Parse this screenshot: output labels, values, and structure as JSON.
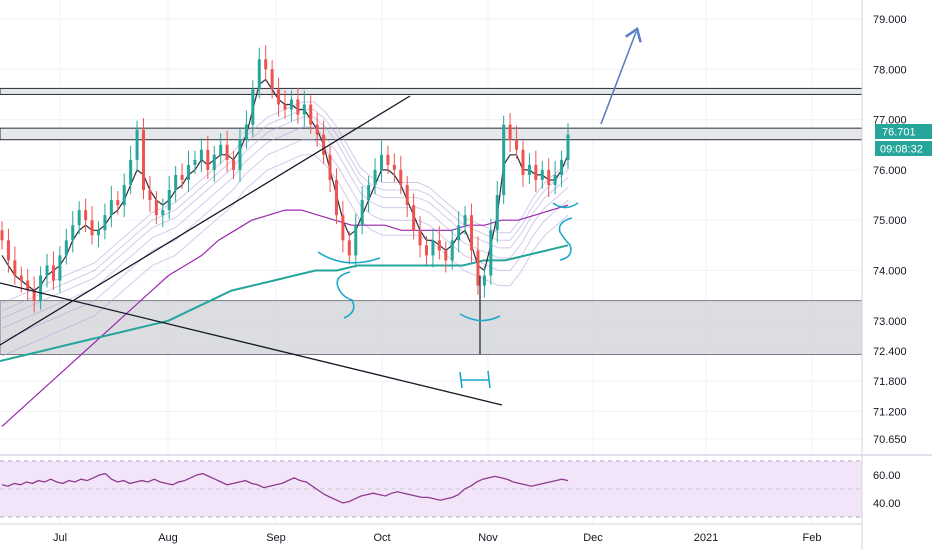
{
  "chart_data": [
    {
      "type": "candlestick",
      "instrument_note": "",
      "y_axis": {
        "ticks": [
          "79.000",
          "78.000",
          "77.000",
          "76.000",
          "75.000",
          "74.000",
          "73.000",
          "72.400",
          "71.800",
          "71.200",
          "70.650"
        ],
        "range": [
          70.3,
          79.35
        ]
      },
      "x_axis": {
        "ticks": [
          "Jul",
          "Aug",
          "Sep",
          "Oct",
          "Nov",
          "Dec",
          "2021",
          "Feb"
        ]
      },
      "price_label": {
        "value": "76.701",
        "color": "#26a69a"
      },
      "countdown_label": {
        "value": "09:08:32",
        "color": "#26a69a"
      },
      "series": [
        {
          "name": "",
          "kind": "price",
          "color": "#ef5350",
          "values": [
            74.6,
            74.2,
            73.9,
            73.8,
            73.6,
            73.4,
            73.9,
            74.1,
            73.8,
            74.3,
            74.6,
            74.9,
            75.2,
            75.0,
            74.7,
            74.8,
            75.1,
            75.4,
            75.3,
            75.7,
            76.2,
            76.8,
            75.6,
            75.4,
            75.1,
            75.2,
            75.6,
            75.9,
            75.8,
            76.1,
            76.2,
            76.4,
            76.0,
            76.3,
            76.5,
            76.2,
            76.0,
            76.6,
            76.9,
            77.6,
            78.2,
            78.0,
            77.6,
            77.3,
            77.2,
            77.4,
            77.1,
            77.3,
            76.9,
            76.7,
            76.3,
            75.8,
            75.1,
            74.6,
            74.3,
            74.9,
            75.4,
            75.7,
            76.0,
            76.3,
            76.1,
            76.0,
            75.7,
            75.3,
            74.8,
            74.5,
            74.3,
            74.6,
            74.4,
            74.2,
            74.6,
            74.9,
            75.1,
            74.4,
            73.7,
            73.9,
            74.8,
            75.5,
            76.9,
            76.6,
            76.4,
            75.9,
            76.1,
            75.8,
            76.0,
            75.7,
            75.9,
            76.2,
            76.7
          ]
        },
        {
          "name": "",
          "kind": "ma",
          "color": "#2a2e39",
          "values": [
            74.3,
            74.1,
            73.9,
            73.8,
            73.7,
            73.6,
            73.7,
            73.9,
            74.0,
            74.1,
            74.3,
            74.6,
            74.8,
            74.9,
            74.8,
            74.8,
            74.9,
            75.1,
            75.2,
            75.4,
            75.7,
            76.0,
            75.9,
            75.6,
            75.4,
            75.3,
            75.4,
            75.6,
            75.7,
            75.9,
            76.0,
            76.2,
            76.1,
            76.2,
            76.3,
            76.3,
            76.2,
            76.4,
            76.7,
            77.2,
            77.7,
            77.8,
            77.6,
            77.4,
            77.3,
            77.3,
            77.2,
            77.2,
            77.0,
            76.8,
            76.5,
            76.0,
            75.5,
            75.0,
            74.7,
            74.8,
            75.1,
            75.4,
            75.7,
            76.0,
            76.0,
            75.9,
            75.7,
            75.4,
            75.1,
            74.8,
            74.6,
            74.6,
            74.5,
            74.4,
            74.5,
            74.7,
            74.8,
            74.5,
            74.1,
            74.0,
            74.5,
            75.1,
            76.1,
            76.3,
            76.3,
            76.0,
            76.0,
            75.9,
            75.9,
            75.8,
            75.8,
            76.0,
            76.3
          ]
        },
        {
          "name": "",
          "kind": "ema-ribbon",
          "color": "#b39ddb",
          "values": [
            73.2,
            73.3,
            73.4,
            73.5,
            73.6,
            73.7,
            73.8,
            73.9,
            74.0,
            74.2,
            74.4,
            74.6,
            74.8,
            75.0,
            75.1,
            75.2,
            75.4,
            75.6,
            75.8,
            76.0,
            76.2,
            76.5,
            76.7,
            76.9,
            77.0,
            77.1,
            77.2,
            77.2,
            77.0,
            76.7,
            76.3,
            75.9,
            75.7,
            75.6,
            75.6,
            75.6,
            75.6,
            75.5,
            75.3,
            75.1,
            74.9,
            74.8,
            74.7,
            74.6,
            74.6,
            74.9,
            75.3,
            75.6,
            75.8,
            76.0
          ]
        },
        {
          "name": "",
          "kind": "ma-long",
          "color": "#9c27b0",
          "values": [
            70.9,
            71.2,
            71.5,
            71.8,
            72.1,
            72.4,
            72.7,
            73.0,
            73.3,
            73.6,
            73.9,
            74.1,
            74.3,
            74.6,
            74.8,
            75.0,
            75.1,
            75.2,
            75.2,
            75.1,
            75.0,
            74.9,
            74.9,
            74.9,
            74.8,
            74.8,
            74.8,
            74.8,
            74.9,
            74.9,
            75.0,
            75.0,
            75.1,
            75.2,
            75.3
          ]
        },
        {
          "name": "",
          "kind": "ma-200",
          "color": "#26a69a",
          "values": [
            72.2,
            72.3,
            72.4,
            72.5,
            72.6,
            72.7,
            72.8,
            72.9,
            73.0,
            73.2,
            73.4,
            73.6,
            73.7,
            73.8,
            73.9,
            74.0,
            74.0,
            74.1,
            74.1,
            74.1,
            74.1,
            74.1,
            74.1,
            74.2,
            74.2,
            74.3,
            74.4,
            74.5
          ]
        }
      ],
      "zones": [
        {
          "kind": "support-box",
          "from": 72.33,
          "to": 73.4,
          "color": "#d1d4dc"
        },
        {
          "kind": "resistance-band-upper",
          "from": 77.5,
          "to": 77.62,
          "color": "#c8cad0"
        },
        {
          "kind": "resistance-band-lower",
          "from": 76.6,
          "to": 76.83,
          "color": "#c8cad0"
        }
      ],
      "annotations": [
        {
          "kind": "handwritten-letter",
          "text": "S"
        },
        {
          "kind": "handwritten-letter",
          "text": "S"
        },
        {
          "kind": "handwritten-letter",
          "text": "H"
        }
      ]
    },
    {
      "type": "line",
      "name": "",
      "y_axis": {
        "ticks": [
          "60.00",
          "40.00"
        ],
        "range": [
          30,
          70
        ]
      },
      "series": [
        {
          "name": "",
          "color": "#8e3b8e",
          "values": [
            53,
            52,
            54,
            53,
            55,
            54,
            56,
            55,
            57,
            55,
            54,
            56,
            55,
            57,
            56,
            58,
            60,
            61,
            57,
            55,
            56,
            54,
            55,
            56,
            55,
            57,
            55,
            54,
            53,
            55,
            56,
            58,
            60,
            61,
            59,
            57,
            55,
            53,
            54,
            55,
            56,
            54,
            53,
            51,
            52,
            53,
            54,
            56,
            58,
            56,
            55,
            52,
            49,
            46,
            44,
            42,
            40,
            41,
            43,
            45,
            46,
            47,
            46,
            45,
            47,
            48,
            47,
            46,
            45,
            44,
            44,
            43,
            42,
            43,
            44,
            46,
            50,
            52,
            55,
            57,
            58,
            59,
            58,
            57,
            55,
            54,
            53,
            52,
            53,
            54,
            55,
            56,
            57,
            56
          ]
        }
      ]
    }
  ]
}
